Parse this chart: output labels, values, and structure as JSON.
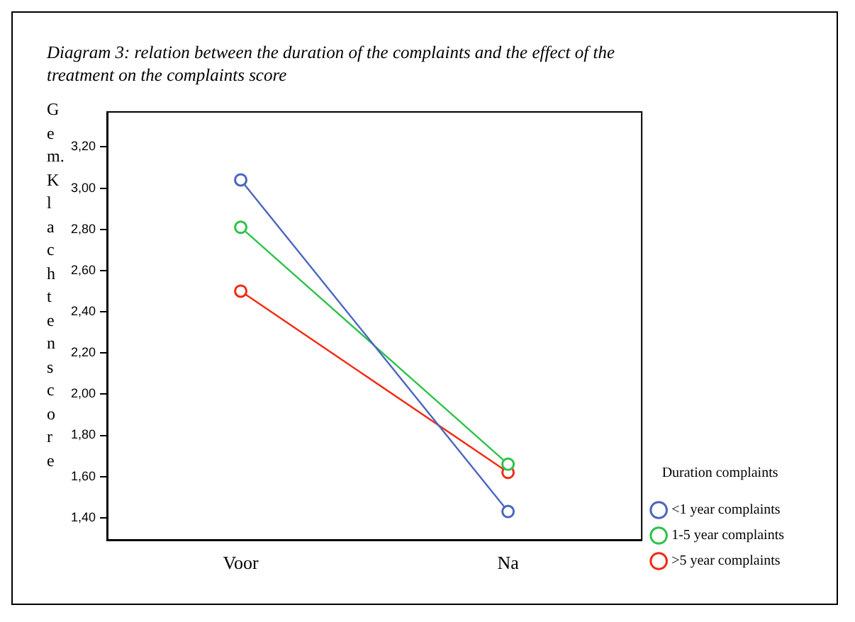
{
  "chart_data": {
    "type": "line",
    "title": "Diagram 3: relation between the duration of the complaints and the effect of the treatment on the complaints score",
    "ylabel": "Gem. Klachtenscore",
    "legend_title": "Duration complaints",
    "categories": [
      "Voor",
      "Na"
    ],
    "series": [
      {
        "name": "<1 year complaints",
        "color": "#4a66c0",
        "values": [
          3.04,
          1.43
        ]
      },
      {
        "name": "1-5 year complaints",
        "color": "#2ec24a",
        "values": [
          2.81,
          1.66
        ]
      },
      {
        "name": ">5 year complaints",
        "color": "#f22a10",
        "values": [
          2.5,
          1.62
        ]
      }
    ],
    "ylim": [
      1.29,
      3.37
    ],
    "yticks": [
      {
        "value": 1.4,
        "label": "1,40"
      },
      {
        "value": 1.6,
        "label": "1,60"
      },
      {
        "value": 1.8,
        "label": "1,80"
      },
      {
        "value": 2.0,
        "label": "2,00"
      },
      {
        "value": 2.2,
        "label": "2,20"
      },
      {
        "value": 2.4,
        "label": "2,40"
      },
      {
        "value": 2.6,
        "label": "2,60"
      },
      {
        "value": 2.8,
        "label": "2,80"
      },
      {
        "value": 3.0,
        "label": "3,00"
      },
      {
        "value": 3.2,
        "label": "3,20"
      }
    ],
    "grid": false,
    "legend": "right",
    "marker": "circle",
    "line_style": "solid"
  }
}
